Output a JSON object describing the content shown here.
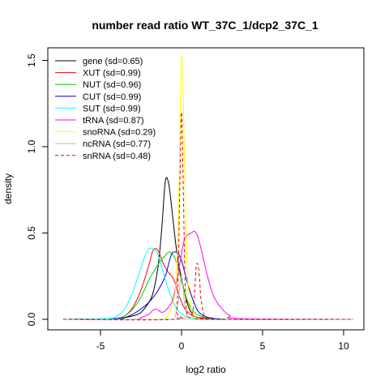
{
  "chart_data": {
    "type": "line",
    "title": "number read ratio WT_37C_1/dcp2_37C_1",
    "xlabel": "log2 ratio",
    "ylabel": "density",
    "xlim": [
      -7.5,
      11
    ],
    "ylim": [
      0,
      1.6
    ],
    "xticks": [
      -5,
      0,
      5,
      10
    ],
    "xtick_labels": [
      "-5",
      "0",
      "5",
      "10"
    ],
    "yticks": [
      0.0,
      0.5,
      1.0,
      1.5
    ],
    "ytick_labels": [
      "0.0",
      "0.5",
      "1.0",
      "1.5"
    ],
    "legend_position": "top-left",
    "series": [
      {
        "name": "gene (sd=0.65)",
        "color": "#000000",
        "dash": "solid",
        "x": [
          -7.3,
          -4,
          -3.5,
          -3,
          -2.5,
          -2,
          -1.8,
          -1.6,
          -1.4,
          -1.2,
          -1.0,
          -0.8,
          -0.6,
          -0.4,
          -0.2,
          0,
          0.2,
          0.4,
          0.6,
          0.8,
          1.0,
          1.5,
          2,
          2.5,
          3,
          4,
          10.6
        ],
        "y": [
          0,
          0,
          0.01,
          0.02,
          0.04,
          0.1,
          0.14,
          0.22,
          0.34,
          0.55,
          0.8,
          0.79,
          0.64,
          0.47,
          0.33,
          0.24,
          0.15,
          0.08,
          0.04,
          0.02,
          0.01,
          0.005,
          0.002,
          0.001,
          0,
          0,
          0
        ]
      },
      {
        "name": "XUT (sd=0.99)",
        "color": "#ff0000",
        "dash": "solid",
        "x": [
          -7.3,
          -4.5,
          -4,
          -3.5,
          -3,
          -2.5,
          -2,
          -1.8,
          -1.6,
          -1.4,
          -1.2,
          -1.0,
          -0.8,
          -0.6,
          -0.4,
          -0.2,
          0,
          0.2,
          0.4,
          0.6,
          0.8,
          1.0,
          1.5,
          2,
          2.5,
          3,
          10.6
        ],
        "y": [
          0,
          0,
          0.005,
          0.02,
          0.07,
          0.17,
          0.32,
          0.39,
          0.41,
          0.39,
          0.34,
          0.3,
          0.27,
          0.25,
          0.21,
          0.15,
          0.1,
          0.06,
          0.04,
          0.025,
          0.015,
          0.01,
          0.005,
          0.002,
          0,
          0,
          0
        ]
      },
      {
        "name": "NUT (sd=0.96)",
        "color": "#00cc00",
        "dash": "solid",
        "x": [
          -7.3,
          -4,
          -3.5,
          -3,
          -2.5,
          -2,
          -1.5,
          -1.2,
          -1.0,
          -0.8,
          -0.6,
          -0.4,
          -0.2,
          0,
          0.2,
          0.4,
          0.6,
          0.8,
          1.0,
          1.5,
          2,
          2.5,
          3,
          10.6
        ],
        "y": [
          0,
          0.005,
          0.02,
          0.06,
          0.13,
          0.23,
          0.31,
          0.35,
          0.37,
          0.39,
          0.38,
          0.35,
          0.3,
          0.22,
          0.15,
          0.1,
          0.06,
          0.04,
          0.025,
          0.01,
          0.005,
          0,
          0,
          0
        ]
      },
      {
        "name": "CUT (sd=0.99)",
        "color": "#0000cc",
        "dash": "solid",
        "x": [
          -7.3,
          -4,
          -3.5,
          -3,
          -2.5,
          -2,
          -1.5,
          -1.0,
          -0.8,
          -0.6,
          -0.4,
          -0.2,
          0,
          0.2,
          0.4,
          0.6,
          0.8,
          1.0,
          1.2,
          1.5,
          2,
          2.5,
          3,
          10.6
        ],
        "y": [
          0,
          0.005,
          0.01,
          0.03,
          0.06,
          0.1,
          0.16,
          0.25,
          0.32,
          0.38,
          0.39,
          0.38,
          0.34,
          0.27,
          0.2,
          0.14,
          0.09,
          0.05,
          0.03,
          0.015,
          0.005,
          0.002,
          0,
          0
        ]
      },
      {
        "name": "SUT (sd=0.99)",
        "color": "#00ffff",
        "dash": "solid",
        "x": [
          -7.3,
          -4.5,
          -4,
          -3.5,
          -3,
          -2.5,
          -2.2,
          -2.0,
          -1.8,
          -1.6,
          -1.4,
          -1.2,
          -1.0,
          -0.8,
          -0.6,
          -0.4,
          -0.2,
          0,
          0.5,
          1,
          1.5,
          2,
          10.6
        ],
        "y": [
          0,
          0.005,
          0.02,
          0.06,
          0.16,
          0.3,
          0.38,
          0.41,
          0.41,
          0.4,
          0.36,
          0.3,
          0.23,
          0.17,
          0.12,
          0.08,
          0.05,
          0.03,
          0.01,
          0.005,
          0,
          0,
          0
        ]
      },
      {
        "name": "tRNA (sd=0.87)",
        "color": "#ff00ff",
        "dash": "solid",
        "x": [
          -7.3,
          -3,
          -2.5,
          -2,
          -1.8,
          -1.6,
          -1.4,
          -1.2,
          -1.0,
          -0.8,
          -0.6,
          -0.4,
          -0.2,
          0,
          0.2,
          0.4,
          0.6,
          0.8,
          1.0,
          1.2,
          1.4,
          1.6,
          2.0,
          2.5,
          3,
          3.5,
          10.6
        ],
        "y": [
          0,
          0,
          0.01,
          0.03,
          0.05,
          0.06,
          0.05,
          0.04,
          0.05,
          0.07,
          0.1,
          0.17,
          0.27,
          0.38,
          0.47,
          0.49,
          0.5,
          0.51,
          0.48,
          0.41,
          0.33,
          0.25,
          0.13,
          0.06,
          0.02,
          0.005,
          0
        ]
      },
      {
        "name": "snoRNA (sd=0.29)",
        "color": "#ffff00",
        "dash": "solid",
        "x": [
          -7.3,
          -1.5,
          -1.0,
          -0.8,
          -0.6,
          -0.4,
          -0.3,
          -0.2,
          -0.1,
          0,
          0.1,
          0.2,
          0.3,
          0.4,
          0.6,
          0.8,
          1.0,
          1.5,
          10.6
        ],
        "y": [
          0,
          0,
          0.01,
          0.03,
          0.07,
          0.15,
          0.3,
          0.55,
          1.05,
          1.52,
          1.3,
          0.85,
          0.45,
          0.2,
          0.06,
          0.02,
          0.005,
          0,
          0
        ]
      },
      {
        "name": "ncRNA (sd=0.77)",
        "color": "#bbbbbb",
        "dash": "solid",
        "x": [
          -7.3,
          -0.6,
          -0.4,
          -0.2,
          -0.1,
          0,
          0.1,
          0.2,
          0.4,
          0.6,
          10.6
        ],
        "y": [
          0,
          0,
          0.02,
          0.1,
          0.2,
          0.25,
          0.18,
          0.08,
          0.02,
          0,
          0
        ]
      },
      {
        "name": "snRNA (sd=0.48)",
        "color": "#ee0000",
        "dash": "dashed",
        "x": [
          -7.3,
          -0.5,
          -0.3,
          -0.2,
          -0.1,
          0,
          0.1,
          0.2,
          0.3,
          0.5,
          0.7,
          0.8,
          0.9,
          1.0,
          1.1,
          1.2,
          1.4,
          1.6,
          10.6
        ],
        "y": [
          0,
          0,
          0.05,
          0.3,
          0.8,
          1.2,
          0.8,
          0.3,
          0.05,
          0.01,
          0.05,
          0.15,
          0.3,
          0.32,
          0.25,
          0.12,
          0.02,
          0,
          0
        ]
      }
    ]
  }
}
